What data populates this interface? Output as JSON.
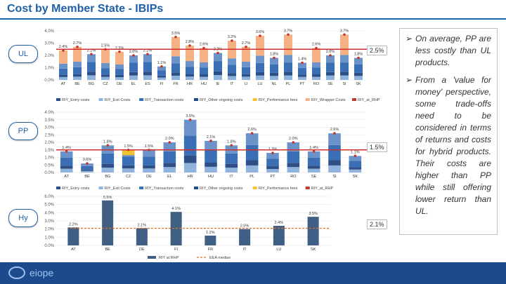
{
  "header": {
    "title": "Cost by Member State - IBIPs"
  },
  "rows": {
    "ul": "UL",
    "pp": "PP",
    "hy": "Hy"
  },
  "averages": {
    "ul": "2.5%",
    "pp": "1.5%",
    "hy": "2.1%"
  },
  "side_panel": {
    "bullets": [
      "On average, PP are less costly than UL products.",
      "From a 'value for money' perspective, some trade-offs need to be considered in terms of returns and costs for hybrid products. Their costs are higher than PP while still offering lower return than UL."
    ]
  },
  "footer": {
    "logo_text": "eiope"
  },
  "colors": {
    "accent": "#1f5fa8",
    "red_line": "#d32f2f",
    "median_line": "#e07020",
    "footer": "#1b4b8c"
  },
  "chart_data": [
    {
      "type": "bar",
      "id": "ul",
      "categories": [
        "AT",
        "BE",
        "BG",
        "CZ",
        "DE",
        "EL",
        "ES",
        "FI",
        "FR",
        "HR",
        "HU",
        "IE",
        "IT",
        "LI",
        "LU",
        "NL",
        "PL",
        "PT",
        "RO",
        "SE",
        "SI",
        "SK"
      ],
      "y_ticks": [
        "0.0%",
        "1.0%",
        "2.0%",
        "3.0%",
        "4.0%"
      ],
      "ylim": [
        0,
        4
      ],
      "totals": [
        2.4,
        2.7,
        2.1,
        2.5,
        2.3,
        2.0,
        2.1,
        1.1,
        3.5,
        2.8,
        2.6,
        2.2,
        3.2,
        2.7,
        3.6,
        1.8,
        3.7,
        1.4,
        2.6,
        2.0,
        3.7,
        1.8
      ],
      "total_labels": [
        "2.4%",
        "2.7%",
        "2.1%",
        "2.5%",
        "2.3%",
        "2.0%",
        "2.1%",
        "1.1%",
        "3.5%",
        "2.8%",
        "2.6%",
        "2.2%",
        "3.2%",
        "2.7%",
        "3.6%",
        "1.8%",
        "3.7%",
        "1.4%",
        "2.6%",
        "2.0%",
        "3.7%",
        "1.8%"
      ],
      "average": 2.5,
      "legend": [
        "RIY_Entry costs",
        "RIY_Exit Costs",
        "RIY_Transaction costs",
        "RIY_Other ongoing costs",
        "RIY_Performance fees",
        "RIY_Wrapper Costs",
        "RIY_at_RHP"
      ]
    },
    {
      "type": "bar",
      "id": "pp",
      "categories": [
        "AT",
        "BE",
        "BG",
        "CZ",
        "DE",
        "EL",
        "HR",
        "HU",
        "IT",
        "PL",
        "PT",
        "RO",
        "SE",
        "SI",
        "SK"
      ],
      "y_ticks": [
        "0.0%",
        "0.5%",
        "1.0%",
        "1.5%",
        "2.0%",
        "2.5%",
        "3.0%",
        "3.5%",
        "4.0%"
      ],
      "ylim": [
        0,
        4
      ],
      "totals": [
        1.4,
        0.6,
        1.8,
        1.5,
        1.5,
        2.0,
        3.5,
        2.1,
        1.8,
        2.6,
        1.3,
        2.0,
        1.4,
        2.6,
        1.1
      ],
      "total_labels": [
        "1.4%",
        "0.6%",
        "1.8%",
        "1.5%",
        "1.5%",
        "2.0%",
        "3.5%",
        "2.1%",
        "1.8%",
        "2.6%",
        "1.3%",
        "2.0%",
        "1.4%",
        "2.6%",
        "1.1%"
      ],
      "average": 1.5,
      "legend": [
        "RIY_Entry costs",
        "RIY_Exit Costs",
        "RIY_Transaction costs",
        "RIY_Other ongoing costs",
        "RIY_Performance fees",
        "RIY_at_RHP"
      ]
    },
    {
      "type": "bar",
      "id": "hy",
      "categories": [
        "AT",
        "BE",
        "DE",
        "FI",
        "FR",
        "IT",
        "LU",
        "SK"
      ],
      "y_ticks": [
        "0.0%",
        "1.0%",
        "2.0%",
        "3.0%",
        "4.0%",
        "5.0%",
        "6.0%"
      ],
      "ylim": [
        0,
        6
      ],
      "values": [
        2.2,
        5.5,
        2.1,
        4.1,
        1.2,
        2.0,
        2.4,
        3.5
      ],
      "value_labels": [
        "2.2%",
        "5.5%",
        "2.1%",
        "4.1%",
        "1.2%",
        "2.0%",
        "2.4%",
        "3.5%"
      ],
      "median": 2.1,
      "legend": [
        "RIY at RHP",
        "EEA median"
      ]
    }
  ]
}
